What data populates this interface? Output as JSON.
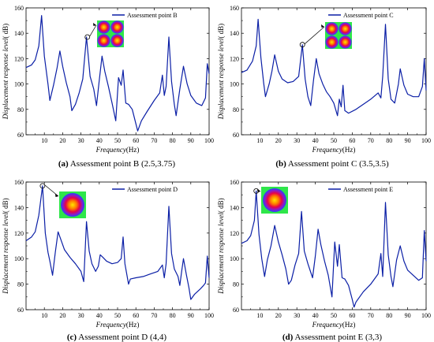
{
  "chart_data": [
    {
      "type": "line",
      "panel": "a",
      "legend": "Assessment point B",
      "caption_letter": "(a)",
      "caption_text": " Assessment point B (2.5,3.75)",
      "xlabel": "Frequency",
      "xlabel_unit": "(Hz)",
      "ylabel": "Displacement  response level",
      "ylabel_unit": "( dB)",
      "xlim": [
        0,
        100
      ],
      "ylim": [
        60,
        160
      ],
      "xticks": [
        10,
        20,
        30,
        40,
        50,
        60,
        70,
        80,
        90,
        100
      ],
      "yticks": [
        60,
        80,
        100,
        120,
        140,
        160
      ],
      "color": "#0b1fa6",
      "callout_x": 33.5,
      "callout_y": 137,
      "mode_shape": "four-lobe",
      "points": [
        [
          0,
          113
        ],
        [
          3,
          115
        ],
        [
          5,
          119
        ],
        [
          7,
          130
        ],
        [
          8.5,
          154
        ],
        [
          10,
          122
        ],
        [
          12,
          100
        ],
        [
          13,
          87
        ],
        [
          15,
          99
        ],
        [
          17,
          113
        ],
        [
          18.5,
          126
        ],
        [
          20,
          114
        ],
        [
          22,
          101
        ],
        [
          24,
          90
        ],
        [
          25,
          79
        ],
        [
          27,
          84
        ],
        [
          29,
          93
        ],
        [
          31,
          104
        ],
        [
          33,
          137
        ],
        [
          35,
          106
        ],
        [
          37,
          96
        ],
        [
          38.5,
          83
        ],
        [
          40,
          103
        ],
        [
          41.5,
          122
        ],
        [
          43,
          110
        ],
        [
          45,
          98
        ],
        [
          47,
          85
        ],
        [
          49,
          71
        ],
        [
          50.5,
          105
        ],
        [
          52,
          99
        ],
        [
          53,
          111
        ],
        [
          54.5,
          85
        ],
        [
          56,
          84
        ],
        [
          58,
          80
        ],
        [
          61,
          63
        ],
        [
          63,
          71
        ],
        [
          66,
          78
        ],
        [
          70,
          87
        ],
        [
          73,
          93
        ],
        [
          74.5,
          107
        ],
        [
          75.5,
          91
        ],
        [
          76.5,
          98
        ],
        [
          78,
          137
        ],
        [
          79.5,
          102
        ],
        [
          81,
          84
        ],
        [
          82,
          75
        ],
        [
          84,
          96
        ],
        [
          86,
          114
        ],
        [
          88,
          100
        ],
        [
          90,
          91
        ],
        [
          93,
          85
        ],
        [
          96,
          83
        ],
        [
          98,
          89
        ],
        [
          99,
          116
        ],
        [
          100,
          108
        ]
      ]
    },
    {
      "type": "line",
      "panel": "b",
      "legend": "Assessment point C",
      "caption_letter": "(b)",
      "caption_text": " Assessment point C (3.5,3.5)",
      "xlabel": "Frequency",
      "xlabel_unit": "(Hz)",
      "ylabel": "Displacement  response level",
      "ylabel_unit": "( dB)",
      "xlim": [
        0,
        100
      ],
      "ylim": [
        60,
        160
      ],
      "xticks": [
        10,
        20,
        30,
        40,
        50,
        60,
        70,
        80,
        90,
        100
      ],
      "yticks": [
        60,
        80,
        100,
        120,
        140,
        160
      ],
      "color": "#0b1fa6",
      "callout_x": 33,
      "callout_y": 131,
      "mode_shape": "four-lobe",
      "points": [
        [
          0,
          109
        ],
        [
          3,
          111
        ],
        [
          6,
          118
        ],
        [
          8,
          130
        ],
        [
          9,
          151
        ],
        [
          10.5,
          121
        ],
        [
          12,
          101
        ],
        [
          13,
          90
        ],
        [
          15,
          100
        ],
        [
          16.5,
          110
        ],
        [
          18,
          123
        ],
        [
          20,
          110
        ],
        [
          22,
          104
        ],
        [
          25,
          101
        ],
        [
          28,
          102
        ],
        [
          31,
          106
        ],
        [
          33,
          131
        ],
        [
          34.5,
          104
        ],
        [
          36,
          90
        ],
        [
          37.5,
          83
        ],
        [
          39,
          103
        ],
        [
          40.5,
          120
        ],
        [
          42,
          108
        ],
        [
          44,
          100
        ],
        [
          46,
          94
        ],
        [
          48,
          90
        ],
        [
          50,
          85
        ],
        [
          52,
          75
        ],
        [
          53,
          88
        ],
        [
          54,
          82
        ],
        [
          55,
          99
        ],
        [
          56,
          79
        ],
        [
          58,
          77
        ],
        [
          62,
          80
        ],
        [
          66,
          84
        ],
        [
          70,
          88
        ],
        [
          74,
          93
        ],
        [
          75.5,
          89
        ],
        [
          76.5,
          106
        ],
        [
          78,
          147
        ],
        [
          79.5,
          104
        ],
        [
          81,
          88
        ],
        [
          83,
          85
        ],
        [
          85,
          100
        ],
        [
          86,
          112
        ],
        [
          88,
          99
        ],
        [
          90,
          92
        ],
        [
          93,
          90
        ],
        [
          96,
          90
        ],
        [
          98,
          98
        ],
        [
          99,
          120
        ],
        [
          100,
          95
        ]
      ]
    },
    {
      "type": "line",
      "panel": "c",
      "legend": "Assessment point D",
      "caption_letter": "(c)",
      "caption_text": " Assessment point D (4,4)",
      "xlabel": "Frequency",
      "xlabel_unit": "(Hz)",
      "ylabel": "Displacement  response level",
      "ylabel_unit": "( dB)",
      "xlim": [
        0,
        100
      ],
      "ylim": [
        60,
        160
      ],
      "xticks": [
        10,
        20,
        30,
        40,
        50,
        60,
        70,
        80,
        90,
        100
      ],
      "yticks": [
        60,
        80,
        100,
        120,
        140,
        160
      ],
      "color": "#0b1fa6",
      "callout_x": 9,
      "callout_y": 157,
      "mode_shape": "single-lobe",
      "points": [
        [
          0,
          114
        ],
        [
          3,
          117
        ],
        [
          5,
          121
        ],
        [
          7,
          134
        ],
        [
          9,
          157
        ],
        [
          10.5,
          120
        ],
        [
          12,
          105
        ],
        [
          13,
          98
        ],
        [
          14.5,
          87
        ],
        [
          16,
          105
        ],
        [
          17.5,
          121
        ],
        [
          19,
          115
        ],
        [
          21,
          107
        ],
        [
          24,
          101
        ],
        [
          27,
          96
        ],
        [
          30,
          90
        ],
        [
          31.5,
          82
        ],
        [
          33,
          129
        ],
        [
          34.5,
          106
        ],
        [
          36,
          96
        ],
        [
          38,
          90
        ],
        [
          39.5,
          94
        ],
        [
          40.5,
          103
        ],
        [
          42,
          101
        ],
        [
          44,
          98
        ],
        [
          47,
          96
        ],
        [
          50,
          97
        ],
        [
          52,
          100
        ],
        [
          53,
          117
        ],
        [
          54,
          96
        ],
        [
          55,
          88
        ],
        [
          56,
          80
        ],
        [
          57,
          84
        ],
        [
          60,
          85
        ],
        [
          64,
          86
        ],
        [
          68,
          88
        ],
        [
          72,
          90
        ],
        [
          74.5,
          95
        ],
        [
          75.5,
          85
        ],
        [
          76.5,
          96
        ],
        [
          78,
          141
        ],
        [
          79.5,
          104
        ],
        [
          81,
          92
        ],
        [
          83,
          86
        ],
        [
          84,
          79
        ],
        [
          85,
          90
        ],
        [
          86,
          100
        ],
        [
          87.5,
          88
        ],
        [
          89,
          77
        ],
        [
          90,
          68
        ],
        [
          92,
          72
        ],
        [
          95,
          76
        ],
        [
          97,
          79
        ],
        [
          98,
          81
        ],
        [
          99,
          102
        ],
        [
          100,
          85
        ]
      ]
    },
    {
      "type": "line",
      "panel": "d",
      "legend": "Assessment point E",
      "caption_letter": "(d)",
      "caption_text": " Assessment point E (3,3)",
      "xlabel": "Frequency",
      "xlabel_unit": "(Hz)",
      "ylabel": "Displacement  response level",
      "ylabel_unit": "( dB)",
      "xlim": [
        0,
        100
      ],
      "ylim": [
        60,
        160
      ],
      "xticks": [
        10,
        20,
        30,
        40,
        50,
        60,
        70,
        80,
        90,
        100
      ],
      "yticks": [
        60,
        80,
        100,
        120,
        140,
        160
      ],
      "color": "#0b1fa6",
      "callout_x": 8,
      "callout_y": 153,
      "mode_shape": "single-lobe",
      "points": [
        [
          0,
          112
        ],
        [
          3,
          114
        ],
        [
          5,
          118
        ],
        [
          7,
          130
        ],
        [
          8,
          153
        ],
        [
          9.5,
          119
        ],
        [
          11,
          100
        ],
        [
          12.5,
          86
        ],
        [
          14,
          99
        ],
        [
          16,
          110
        ],
        [
          18,
          126
        ],
        [
          20,
          113
        ],
        [
          22,
          103
        ],
        [
          24,
          92
        ],
        [
          25.5,
          80
        ],
        [
          27,
          83
        ],
        [
          29,
          95
        ],
        [
          31,
          104
        ],
        [
          32.5,
          137
        ],
        [
          34,
          106
        ],
        [
          36,
          96
        ],
        [
          38.5,
          85
        ],
        [
          40,
          102
        ],
        [
          41.5,
          123
        ],
        [
          43,
          111
        ],
        [
          45,
          98
        ],
        [
          47,
          87
        ],
        [
          49,
          70
        ],
        [
          50.5,
          113
        ],
        [
          52,
          94
        ],
        [
          53,
          111
        ],
        [
          54.5,
          85
        ],
        [
          56,
          84
        ],
        [
          58,
          79
        ],
        [
          60,
          68
        ],
        [
          61,
          62
        ],
        [
          62,
          66
        ],
        [
          66,
          74
        ],
        [
          70,
          80
        ],
        [
          74,
          88
        ],
        [
          75.5,
          104
        ],
        [
          76.5,
          86
        ],
        [
          78,
          144
        ],
        [
          79.5,
          103
        ],
        [
          81,
          86
        ],
        [
          82,
          78
        ],
        [
          84,
          99
        ],
        [
          86,
          110
        ],
        [
          88,
          98
        ],
        [
          90,
          91
        ],
        [
          93,
          87
        ],
        [
          96,
          83
        ],
        [
          98,
          85
        ],
        [
          99,
          122
        ],
        [
          100,
          98
        ]
      ]
    }
  ]
}
